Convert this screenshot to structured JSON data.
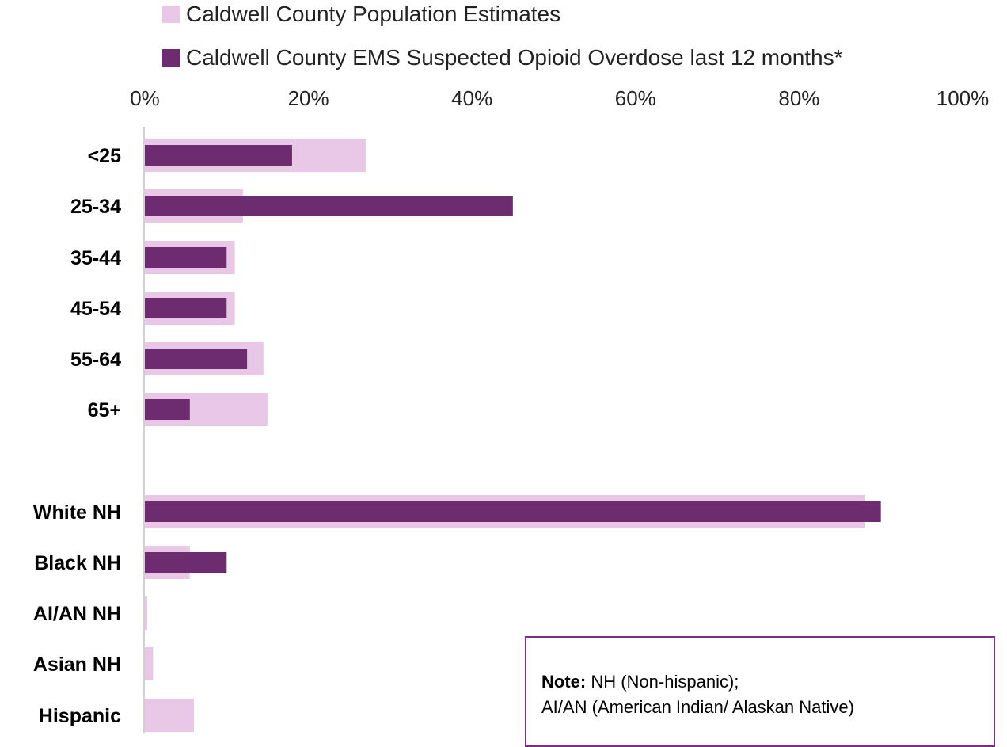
{
  "colors": {
    "population": "#e8c8e6",
    "ems": "#6d2c70",
    "axis_line": "#d0d0d0",
    "note_border": "#7a2e80"
  },
  "legend": [
    {
      "label": "Caldwell County Population Estimates",
      "color": "#e8c8e6"
    },
    {
      "label": "Caldwell County EMS Suspected Opioid Overdose last 12 months*",
      "color": "#6d2c70"
    }
  ],
  "note": {
    "label": "Note:",
    "line1": "NH (Non-hispanic);",
    "line2": "AI/AN (American Indian/ Alaskan Native)"
  },
  "chart_data": {
    "type": "bar",
    "orientation": "horizontal",
    "x_axis_position": "top",
    "xlim": [
      0,
      100
    ],
    "x_ticks": [
      "0%",
      "20%",
      "40%",
      "60%",
      "80%",
      "100%"
    ],
    "x_tick_values": [
      0,
      20,
      40,
      60,
      80,
      100
    ],
    "categories": [
      "<25",
      "25-34",
      "35-44",
      "45-54",
      "55-64",
      "65+",
      "White NH",
      "Black NH",
      "AI/AN NH",
      "Asian NH",
      "Hispanic"
    ],
    "category_groups": [
      [
        0,
        1,
        2,
        3,
        4,
        5
      ],
      [
        6,
        7,
        8,
        9,
        10
      ]
    ],
    "series": [
      {
        "name": "Caldwell County Population Estimates",
        "color": "#e8c8e6",
        "values": [
          27,
          12,
          11,
          11,
          14.5,
          15,
          88,
          5.5,
          0.3,
          1,
          6
        ]
      },
      {
        "name": "Caldwell County EMS Suspected Opioid Overdose last 12 months*",
        "color": "#6d2c70",
        "values": [
          18,
          45,
          10,
          10,
          12.5,
          5.5,
          90,
          10,
          0,
          0,
          0
        ]
      }
    ],
    "grid": false,
    "legend_position": "top"
  }
}
